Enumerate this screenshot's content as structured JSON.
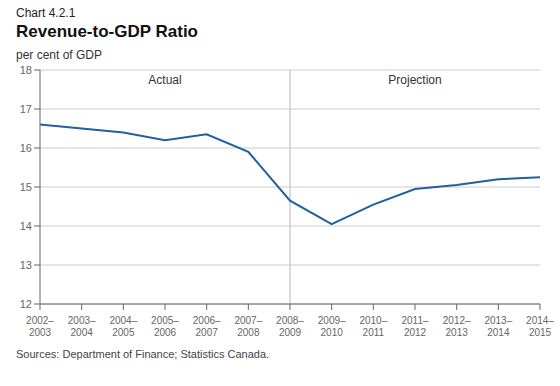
{
  "chart_data": {
    "type": "line",
    "subtitle": "Chart 4.2.1",
    "title": "Revenue-to-GDP Ratio",
    "y_label": "per cent of GDP",
    "source": "Sources: Department of Finance; Statistics Canada.",
    "categories": [
      "2002–\n2003",
      "2003–\n2004",
      "2004–\n2005",
      "2005–\n2006",
      "2006–\n2007",
      "2007–\n2008",
      "2008–\n2009",
      "2009–\n2010",
      "2010–\n2011",
      "2011–\n2012",
      "2012–\n2013",
      "2013–\n2014",
      "2014–\n2015"
    ],
    "values": [
      16.6,
      16.5,
      16.4,
      16.2,
      16.35,
      15.9,
      14.65,
      14.05,
      14.55,
      14.95,
      15.05,
      15.2,
      15.25
    ],
    "color": "#2060a0",
    "annotations": [
      {
        "text": "Actual",
        "from": "2002–\n2003",
        "to": "2008–\n2009"
      },
      {
        "text": "Projection",
        "from": "2008–\n2009",
        "to": "2014–\n2015"
      }
    ],
    "ylim": [
      12,
      18
    ],
    "yticks": [
      12,
      13,
      14,
      15,
      16,
      17,
      18
    ],
    "grid": true
  }
}
